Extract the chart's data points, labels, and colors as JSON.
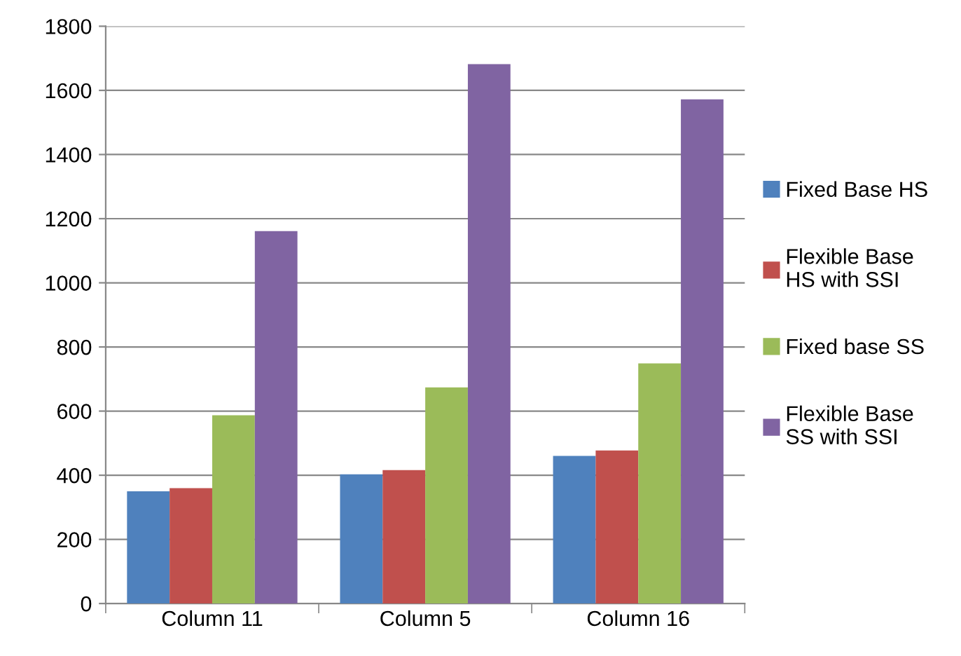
{
  "chart_data": {
    "type": "bar",
    "categories": [
      "Column 11",
      "Column 5",
      "Column 16"
    ],
    "series": [
      {
        "name": "Fixed Base HS",
        "color": "#4f81bd",
        "values": [
          350,
          403,
          460
        ]
      },
      {
        "name": "Flexible Base HS with SSI",
        "color": "#c0504d",
        "values": [
          360,
          416,
          477
        ]
      },
      {
        "name": "Fixed base SS",
        "color": "#9bbb59",
        "values": [
          587,
          674,
          749
        ]
      },
      {
        "name": "Flexible Base SS with SSI",
        "color": "#8064a2",
        "values": [
          1161,
          1682,
          1572
        ]
      }
    ],
    "ylim": [
      0,
      1800
    ],
    "yticks": [
      0,
      200,
      400,
      600,
      800,
      1000,
      1200,
      1400,
      1600,
      1800
    ],
    "grid": "y",
    "legend": "right"
  }
}
